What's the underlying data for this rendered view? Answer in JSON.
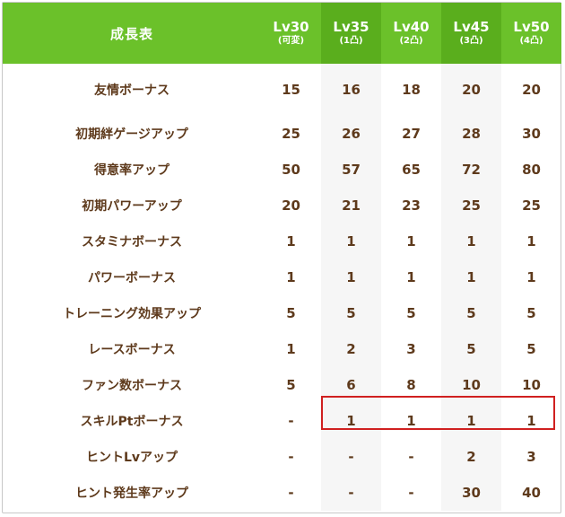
{
  "header": {
    "title": "成長表",
    "levels": [
      {
        "lv": "Lv30",
        "sub": "(可変)"
      },
      {
        "lv": "Lv35",
        "sub": "(1凸)"
      },
      {
        "lv": "Lv40",
        "sub": "(2凸)"
      },
      {
        "lv": "Lv45",
        "sub": "(3凸)"
      },
      {
        "lv": "Lv50",
        "sub": "(4凸)"
      }
    ]
  },
  "rows": [
    {
      "label": "友情ボーナス",
      "values": [
        "15",
        "16",
        "18",
        "20",
        "20"
      ]
    },
    {
      "label": "初期絆ゲージアップ",
      "values": [
        "25",
        "26",
        "27",
        "28",
        "30"
      ]
    },
    {
      "label": "得意率アップ",
      "values": [
        "50",
        "57",
        "65",
        "72",
        "80"
      ]
    },
    {
      "label": "初期パワーアップ",
      "values": [
        "20",
        "21",
        "23",
        "25",
        "25"
      ]
    },
    {
      "label": "スタミナボーナス",
      "values": [
        "1",
        "1",
        "1",
        "1",
        "1"
      ]
    },
    {
      "label": "パワーボーナス",
      "values": [
        "1",
        "1",
        "1",
        "1",
        "1"
      ]
    },
    {
      "label": "トレーニング効果アップ",
      "values": [
        "5",
        "5",
        "5",
        "5",
        "5"
      ]
    },
    {
      "label": "レースボーナス",
      "values": [
        "1",
        "2",
        "3",
        "5",
        "5"
      ]
    },
    {
      "label": "ファン数ボーナス",
      "values": [
        "5",
        "6",
        "8",
        "10",
        "10"
      ]
    },
    {
      "label": "スキルPtボーナス",
      "values": [
        "-",
        "1",
        "1",
        "1",
        "1"
      ]
    },
    {
      "label": "ヒントLvアップ",
      "values": [
        "-",
        "-",
        "-",
        "2",
        "3"
      ]
    },
    {
      "label": "ヒント発生率アップ",
      "values": [
        "-",
        "-",
        "-",
        "30",
        "40"
      ]
    }
  ],
  "colors": {
    "header_green": "#6bc12a",
    "header_green_dark": "#5aae1d",
    "text_brown": "#5e3a1c",
    "highlight_red": "#d02020"
  }
}
